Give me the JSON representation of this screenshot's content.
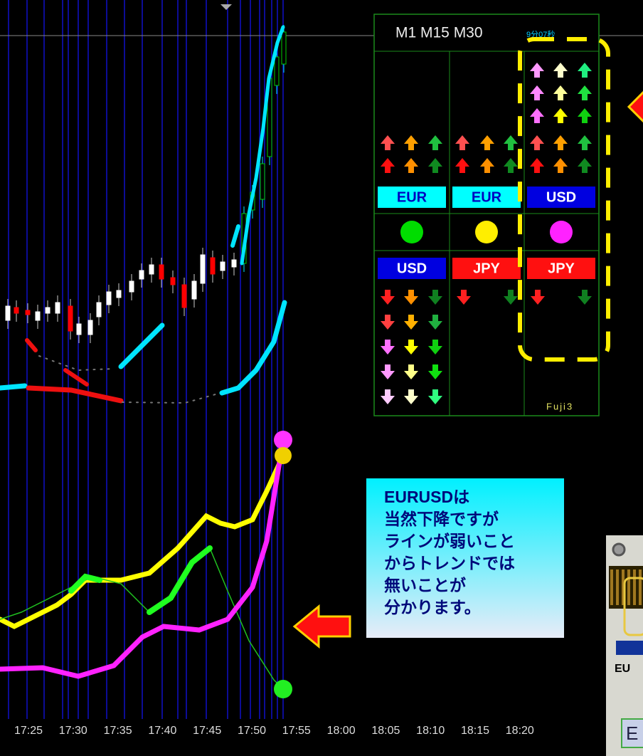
{
  "panel": {
    "timeframes": "M1 M15 M30",
    "timer": "9分07秒",
    "top_labels": [
      "EUR",
      "EUR",
      "USD"
    ],
    "bottom_labels": [
      "USD",
      "JPY",
      "JPY"
    ],
    "signature": "Fuji3"
  },
  "callout": {
    "lines": [
      "EURUSDは",
      "当然下降ですが",
      "ラインが弱いこと",
      "からトレンドでは",
      "無いことが",
      "分かります。"
    ]
  },
  "x_axis": {
    "labels": [
      "17:25",
      "17:30",
      "17:35",
      "17:40",
      "17:45",
      "17:50",
      "17:55",
      "18:00",
      "18:05",
      "18:10",
      "18:15",
      "18:20"
    ]
  },
  "side_window": {
    "label1": "EU",
    "label2": "E"
  }
}
